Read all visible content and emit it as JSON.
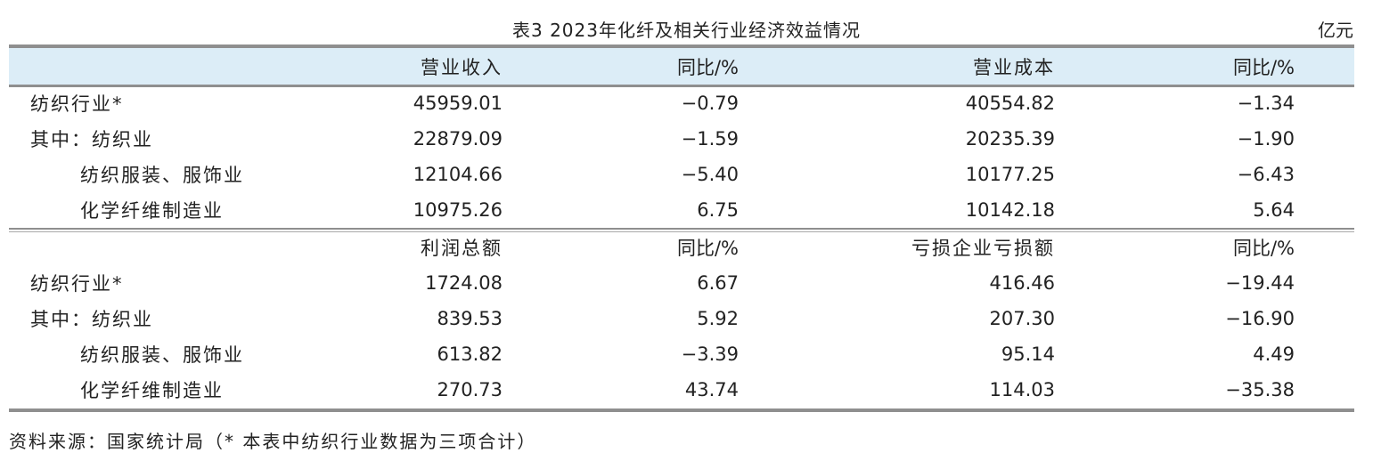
{
  "title": "表3  2023年化纤及相关行业经济效益情况",
  "unit": "亿元",
  "section1": {
    "headers": [
      "营业收入",
      "同比/%",
      "营业成本",
      "同比/%"
    ],
    "rows": [
      {
        "label": "纺织行业*",
        "values": [
          "45959.01",
          "−0.79",
          "40554.82",
          "−1.34"
        ]
      },
      {
        "label": "其中：纺织业",
        "values": [
          "22879.09",
          "−1.59",
          "20235.39",
          "−1.90"
        ]
      },
      {
        "label": "纺织服装、服饰业",
        "values": [
          "12104.66",
          "−5.40",
          "10177.25",
          "−6.43"
        ]
      },
      {
        "label": "化学纤维制造业",
        "values": [
          "10975.26",
          "6.75",
          "10142.18",
          "5.64"
        ]
      }
    ]
  },
  "section2": {
    "headers": [
      "利润总额",
      "同比/%",
      "亏损企业亏损额",
      "同比/%"
    ],
    "rows": [
      {
        "label": "纺织行业*",
        "values": [
          "1724.08",
          "6.67",
          "416.46",
          "−19.44"
        ]
      },
      {
        "label": "其中：纺织业",
        "values": [
          "839.53",
          "5.92",
          "207.30",
          "−16.90"
        ]
      },
      {
        "label": "纺织服装、服饰业",
        "values": [
          "613.82",
          "−3.39",
          "95.14",
          "4.49"
        ]
      },
      {
        "label": "化学纤维制造业",
        "values": [
          "270.73",
          "43.74",
          "114.03",
          "−35.38"
        ]
      }
    ]
  },
  "source": "资料来源：国家统计局（* 本表中纺织行业数据为三项合计）"
}
